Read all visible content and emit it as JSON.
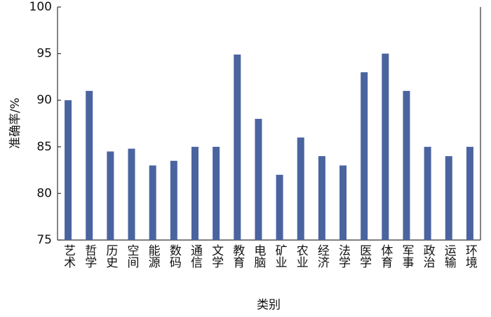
{
  "chart_data": {
    "type": "bar",
    "x_label": "类别",
    "y_label": "准确率/%",
    "categories": [
      "艺术",
      "哲学",
      "历史",
      "空间",
      "能源",
      "数码",
      "通信",
      "文学",
      "教育",
      "电脑",
      "矿业",
      "农业",
      "经济",
      "法学",
      "医学",
      "体育",
      "军事",
      "政治",
      "运输",
      "环境"
    ],
    "values": [
      90,
      91,
      84.5,
      84.8,
      83,
      83.5,
      85,
      85,
      94.9,
      88,
      82,
      86,
      84,
      83,
      93,
      95,
      91,
      85,
      84,
      85
    ],
    "color": "#4a64a0",
    "ylim": [
      75,
      100
    ],
    "yticks": [
      75,
      80,
      85,
      90,
      95,
      100
    ],
    "grid": false
  }
}
